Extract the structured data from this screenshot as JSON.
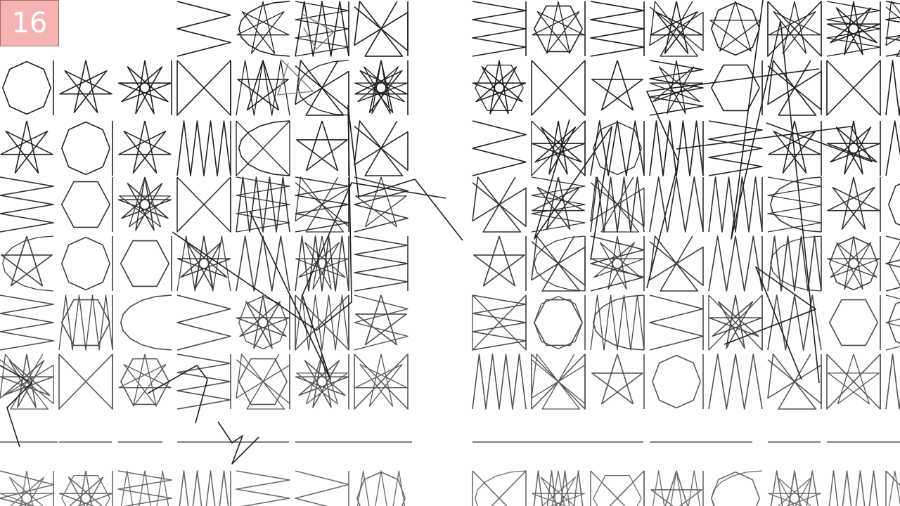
{
  "score": "16",
  "colors": {
    "score_bg": "#f6b3b6",
    "stroke_dark": "#1e1e1e",
    "stroke_mid": "#444444",
    "stroke_light": "#777777"
  },
  "board": {
    "columns": 15,
    "rows": 8,
    "column_gap_after": [
      3,
      7,
      11
    ]
  }
}
